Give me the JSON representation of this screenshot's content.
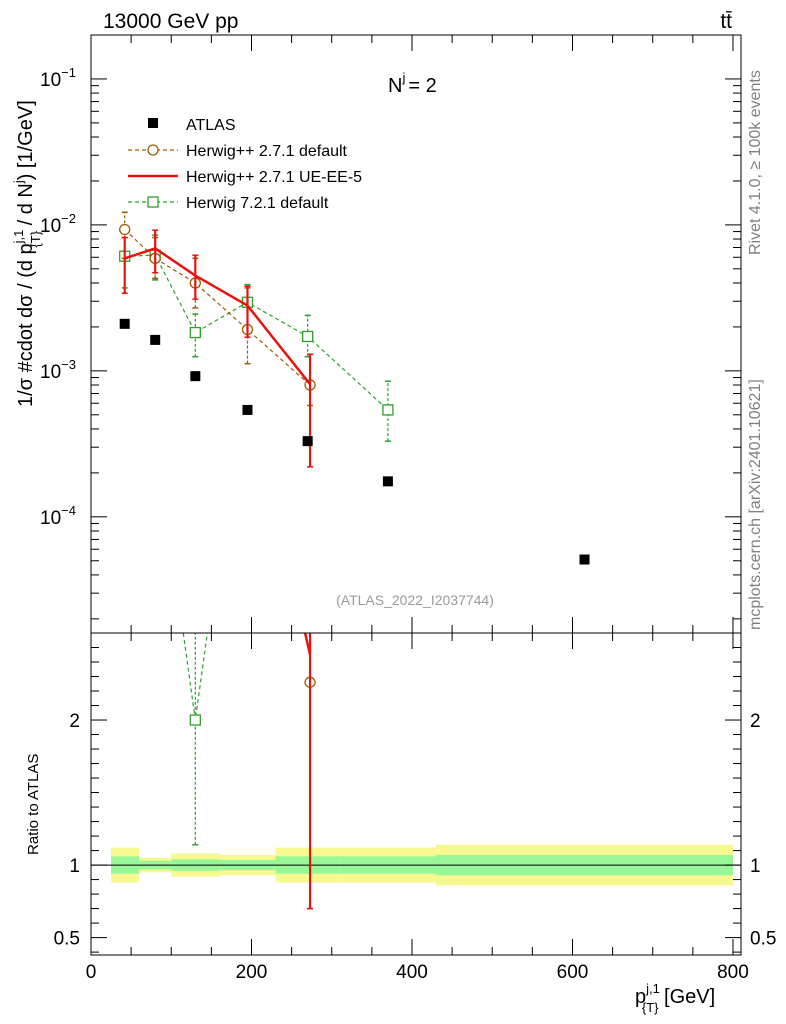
{
  "header": {
    "energy_label": "13000 GeV pp",
    "process_label": "tt̄"
  },
  "side_text": {
    "rivet": "Rivet 4.1.0, ≥ 100k events",
    "mcplots": "mcplots.cern.ch [arXiv:2401.10621]"
  },
  "chart_data": {
    "type": "scatter",
    "title": "N",
    "title_superscript": "j",
    "title_value": "= 2",
    "analysis_label": "(ATLAS_2022_I2037744)",
    "ylabel": "1/σ #cdot dσ / (d p_{T}^{j,1} / d N^j) [1/GeV]",
    "ylabel_parts": {
      "main": "1/σ #cdot dσ / (d p",
      "sup": "j,1",
      "sub": "{T}",
      "tail": " / d N",
      "tail_sup": "j",
      "unit": ") [1/GeV]"
    },
    "xlabel_parts": {
      "main": "p",
      "sup": "j,1",
      "sub": "{T}",
      "unit": " [GeV]"
    },
    "ratio_ylabel": "Ratio to ATLAS",
    "xlim": [
      0,
      810
    ],
    "ylim": [
      1.6e-05,
      0.2
    ],
    "yscale": "log",
    "ratio_ylim": [
      0.38,
      2.6
    ],
    "x_ticks": [
      {
        "value": 0,
        "label": "0"
      },
      {
        "value": 200,
        "label": "200"
      },
      {
        "value": 400,
        "label": "400"
      },
      {
        "value": 600,
        "label": "600"
      },
      {
        "value": 800,
        "label": "800"
      }
    ],
    "y_ticks": [
      {
        "value": 0.1,
        "label": "10",
        "exp": "−1"
      },
      {
        "value": 0.01,
        "label": "10",
        "exp": "−2"
      },
      {
        "value": 0.001,
        "label": "10",
        "exp": "−3"
      },
      {
        "value": 0.0001,
        "label": "10",
        "exp": "−4"
      }
    ],
    "ratio_ticks": [
      {
        "value": 0.5,
        "label": "0.5"
      },
      {
        "value": 1,
        "label": "1"
      },
      {
        "value": 2,
        "label": "2"
      }
    ],
    "legend": [
      {
        "key": "atlas",
        "label": "ATLAS"
      },
      {
        "key": "hw271def",
        "label": "Herwig++ 2.7.1 default"
      },
      {
        "key": "hw271ue",
        "label": "Herwig++ 2.7.1 UE-EE-5"
      },
      {
        "key": "hw721",
        "label": "Herwig 7.2.1 default"
      }
    ],
    "colors": {
      "atlas": "#000000",
      "hw271def": "#a05a00",
      "hw271ue": "#e8130e",
      "hw721": "#2ca02c",
      "band_inner": "#98f898",
      "band_outer": "#f8f890"
    },
    "bins": [
      {
        "lo": 25,
        "hi": 60,
        "value": 0.0021,
        "err_inner": 0.06,
        "err_outer": 0.12
      },
      {
        "lo": 60,
        "hi": 100,
        "value": 0.00163,
        "err_inner": 0.03,
        "err_outer": 0.05
      },
      {
        "lo": 100,
        "hi": 160,
        "value": 0.00092,
        "err_inner": 0.04,
        "err_outer": 0.08
      },
      {
        "lo": 160,
        "hi": 230,
        "value": 0.00054,
        "err_inner": 0.035,
        "err_outer": 0.07
      },
      {
        "lo": 230,
        "hi": 310,
        "value": 0.00033,
        "err_inner": 0.06,
        "err_outer": 0.12
      },
      {
        "lo": 310,
        "hi": 430,
        "value": 0.000175,
        "err_inner": 0.06,
        "err_outer": 0.12
      },
      {
        "lo": 430,
        "hi": 800,
        "value": 5.1e-05,
        "err_inner": 0.07,
        "err_outer": 0.14
      }
    ],
    "series": [
      {
        "name": "ATLAS",
        "key": "atlas",
        "marker": "filled-square",
        "line": "none",
        "x": [
          42,
          80,
          130,
          195,
          270,
          370,
          615
        ],
        "y": [
          0.0021,
          0.00163,
          0.00092,
          0.00054,
          0.00033,
          0.000175,
          5.1e-05
        ]
      },
      {
        "name": "Herwig++ 2.7.1 default",
        "key": "hw271def",
        "marker": "open-circle",
        "line": "dashed",
        "x": [
          42,
          80,
          130,
          195,
          273
        ],
        "y": [
          0.0093,
          0.0059,
          0.004,
          0.00192,
          0.0008
        ],
        "err_lo": [
          0.0059,
          0.0043,
          0.0027,
          0.00112,
          0.00058
        ],
        "err_hi": [
          0.0122,
          0.0082,
          0.0059,
          0.0037,
          0.0013
        ]
      },
      {
        "name": "Herwig++ 2.7.1 UE-EE-5",
        "key": "hw271ue",
        "marker": "none",
        "line": "solid",
        "x": [
          42,
          80,
          130,
          195,
          273
        ],
        "y": [
          0.0059,
          0.0069,
          0.0045,
          0.0028,
          0.00081
        ],
        "err_lo": [
          0.0034,
          0.0047,
          0.0031,
          0.0017,
          0.00022
        ],
        "err_hi": [
          0.0082,
          0.0092,
          0.0062,
          0.0038,
          0.0013
        ]
      },
      {
        "name": "Herwig 7.2.1 default",
        "key": "hw721",
        "marker": "open-square",
        "line": "dashed",
        "x": [
          42,
          80,
          130,
          195,
          270,
          370
        ],
        "y": [
          0.0061,
          0.0062,
          0.00183,
          0.00295,
          0.00172,
          0.00054
        ],
        "err_lo": [
          0.0037,
          0.0042,
          0.00125,
          0.0019,
          0.00125,
          0.00033
        ],
        "err_hi": [
          0.0082,
          0.0085,
          0.00245,
          0.0039,
          0.0024,
          0.00085
        ]
      }
    ],
    "ratio_series": [
      {
        "key": "hw721",
        "x": [
          130
        ],
        "y": [
          2.0
        ],
        "err_lo": [
          1.14
        ],
        "err_hi": [
          2.6
        ],
        "from_above": {
          "x_left": 113,
          "x_right": 147,
          "x_top": [
            115,
            145
          ]
        }
      },
      {
        "key": "hw271def",
        "x": [
          273
        ],
        "y": [
          2.26
        ],
        "err_lo": [
          0.7
        ],
        "err_hi": [
          2.6
        ]
      },
      {
        "key": "hw271ue",
        "x": [
          273
        ],
        "y": [
          2.45
        ],
        "err_lo": [
          0.7
        ],
        "err_hi": [
          2.6
        ]
      }
    ]
  }
}
